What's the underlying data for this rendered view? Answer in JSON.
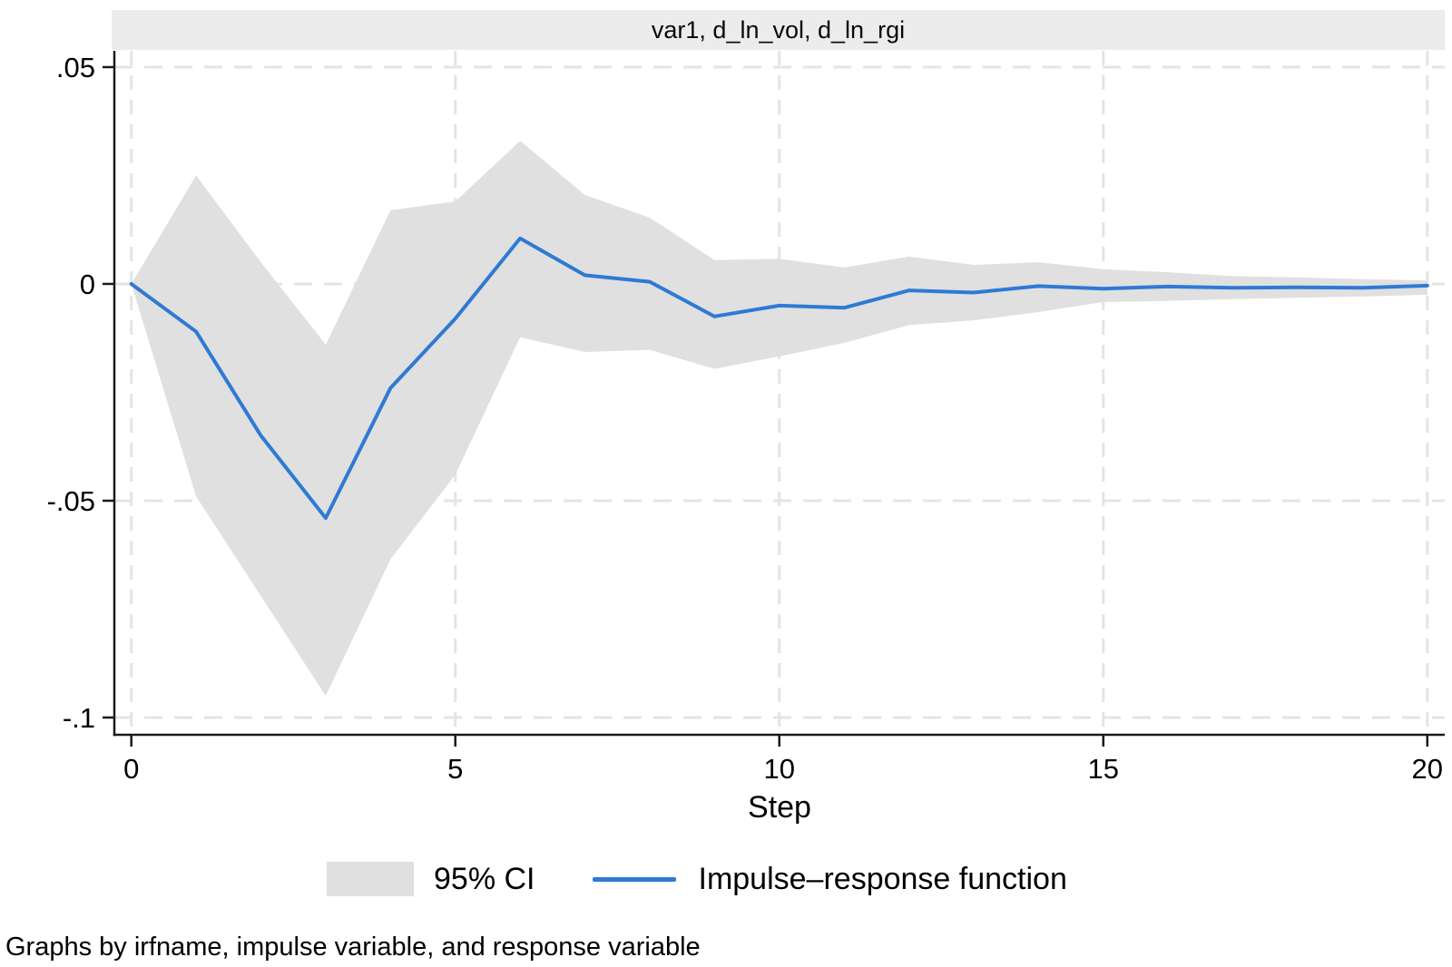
{
  "title": "var1, d_ln_vol, d_ln_rgi",
  "footer": "Graphs by irfname, impulse variable, and response variable",
  "legend": {
    "ci_label": "95% CI",
    "irf_label": "Impulse–response function",
    "position": "bottom"
  },
  "colors": {
    "irf_line": "#2e7ad4",
    "ci_band": "#e0e0e0",
    "title_band_bg": "#ececec",
    "gridline": "#e4e4e4",
    "axis": "#1a1a1a",
    "text": "#000000",
    "background": "#ffffff"
  },
  "chart_data": {
    "type": "area",
    "title": "var1, d_ln_vol, d_ln_rgi",
    "xlabel": "Step",
    "ylabel": "",
    "grid": true,
    "x": [
      0,
      1,
      2,
      3,
      4,
      5,
      6,
      7,
      8,
      9,
      10,
      11,
      12,
      13,
      14,
      15,
      16,
      17,
      18,
      19,
      20
    ],
    "series": [
      {
        "name": "95% CI upper bound",
        "role": "ci_upper",
        "values": [
          0,
          0.025,
          0.005,
          -0.014,
          0.017,
          0.019,
          0.033,
          0.0205,
          0.0153,
          0.0055,
          0.0058,
          0.0038,
          0.0063,
          0.0044,
          0.005,
          0.0034,
          0.0027,
          0.0018,
          0.0015,
          0.0011,
          0.0008
        ]
      },
      {
        "name": "95% CI lower bound",
        "role": "ci_lower",
        "values": [
          0,
          -0.049,
          -0.072,
          -0.095,
          -0.0635,
          -0.044,
          -0.0123,
          -0.0157,
          -0.0152,
          -0.0196,
          -0.0167,
          -0.0136,
          -0.0095,
          -0.0084,
          -0.0065,
          -0.0042,
          -0.0039,
          -0.0035,
          -0.0032,
          -0.0029,
          -0.0025
        ]
      },
      {
        "name": "Impulse–response function",
        "role": "irf",
        "values": [
          0,
          -0.011,
          -0.035,
          -0.054,
          -0.024,
          -0.008,
          0.0105,
          0.002,
          0.0005,
          -0.0075,
          -0.005,
          -0.0055,
          -0.0015,
          -0.002,
          -0.0005,
          -0.0011,
          -0.0006,
          -0.0009,
          -0.0008,
          -0.0009,
          -0.0004
        ]
      }
    ],
    "xtick_values": [
      0,
      5,
      10,
      15,
      20
    ],
    "xtick_labels": [
      "0",
      "5",
      "10",
      "15",
      "20"
    ],
    "ytick_values": [
      0.05,
      0,
      -0.05,
      -0.1
    ],
    "ytick_labels": [
      ".05",
      "0",
      "-.05",
      "-.1"
    ],
    "axis_range": {
      "x": [
        -0.262,
        20.269
      ],
      "y": [
        -0.10398,
        0.05439
      ]
    },
    "legend_entries": [
      "95% CI",
      "Impulse–response function"
    ]
  }
}
